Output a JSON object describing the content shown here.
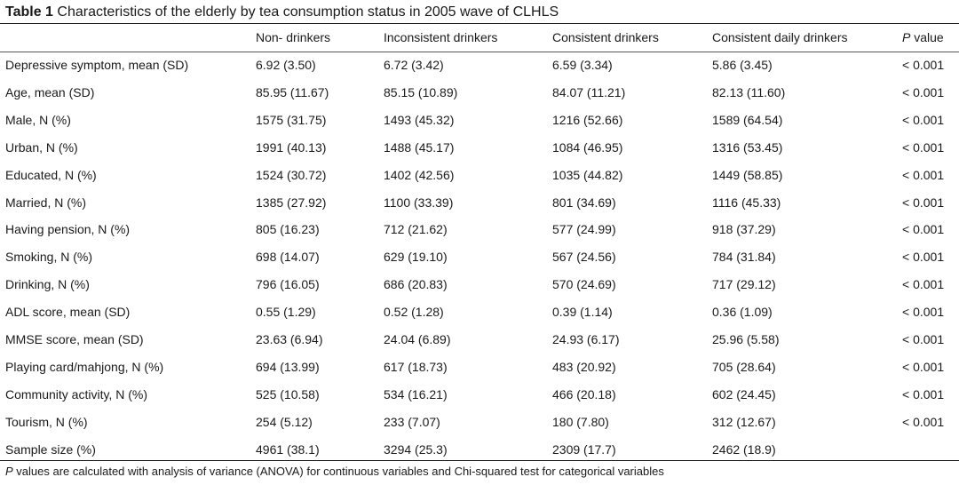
{
  "table": {
    "label": "Table 1",
    "caption": "Characteristics of the elderly by tea consumption status in 2005 wave of CLHLS",
    "columns": [
      "",
      "Non- drinkers",
      "Inconsistent drinkers",
      "Consistent drinkers",
      "Consistent daily drinkers",
      "P value"
    ],
    "p_col_italic": "P",
    "p_col_rest": " value",
    "rows": [
      {
        "label": "Depressive symptom, mean (SD)",
        "cells": [
          "6.92 (3.50)",
          "6.72 (3.42)",
          "6.59 (3.34)",
          "5.86 (3.45)",
          "< 0.001"
        ]
      },
      {
        "label": "Age, mean (SD)",
        "cells": [
          "85.95 (11.67)",
          "85.15 (10.89)",
          "84.07 (11.21)",
          "82.13 (11.60)",
          "< 0.001"
        ]
      },
      {
        "label": "Male, N (%)",
        "cells": [
          "1575 (31.75)",
          "1493 (45.32)",
          "1216 (52.66)",
          "1589 (64.54)",
          "< 0.001"
        ]
      },
      {
        "label": "Urban, N (%)",
        "cells": [
          "1991 (40.13)",
          "1488 (45.17)",
          "1084 (46.95)",
          "1316 (53.45)",
          "< 0.001"
        ]
      },
      {
        "label": "Educated, N (%)",
        "cells": [
          "1524 (30.72)",
          "1402 (42.56)",
          "1035 (44.82)",
          "1449 (58.85)",
          "< 0.001"
        ]
      },
      {
        "label": "Married, N (%)",
        "cells": [
          "1385 (27.92)",
          "1100 (33.39)",
          "801 (34.69)",
          "1116 (45.33)",
          "< 0.001"
        ]
      },
      {
        "label": "Having pension, N (%)",
        "cells": [
          "805 (16.23)",
          "712 (21.62)",
          "577 (24.99)",
          "918 (37.29)",
          "< 0.001"
        ]
      },
      {
        "label": "Smoking, N (%)",
        "cells": [
          "698 (14.07)",
          "629 (19.10)",
          "567 (24.56)",
          "784 (31.84)",
          "< 0.001"
        ]
      },
      {
        "label": "Drinking, N (%)",
        "cells": [
          "796 (16.05)",
          "686 (20.83)",
          "570 (24.69)",
          "717 (29.12)",
          "< 0.001"
        ]
      },
      {
        "label": "ADL score, mean (SD)",
        "cells": [
          "0.55 (1.29)",
          "0.52 (1.28)",
          "0.39 (1.14)",
          "0.36 (1.09)",
          "< 0.001"
        ]
      },
      {
        "label": "MMSE score, mean (SD)",
        "cells": [
          "23.63 (6.94)",
          "24.04 (6.89)",
          "24.93 (6.17)",
          "25.96 (5.58)",
          "< 0.001"
        ]
      },
      {
        "label": "Playing card/mahjong, N (%)",
        "cells": [
          "694 (13.99)",
          "617 (18.73)",
          "483 (20.92)",
          "705 (28.64)",
          "< 0.001"
        ]
      },
      {
        "label": "Community activity, N (%)",
        "cells": [
          "525 (10.58)",
          "534 (16.21)",
          "466 (20.18)",
          "602 (24.45)",
          "< 0.001"
        ]
      },
      {
        "label": "Tourism, N (%)",
        "cells": [
          "254 (5.12)",
          "233 (7.07)",
          "180 (7.80)",
          "312 (12.67)",
          "< 0.001"
        ]
      },
      {
        "label": "Sample size (%)",
        "cells": [
          "4961 (38.1)",
          "3294 (25.3)",
          "2309 (17.7)",
          "2462 (18.9)",
          ""
        ]
      }
    ],
    "footnote_italic": "P",
    "footnote_rest": " values are calculated with analysis of variance (ANOVA) for continuous variables and Chi-squared test for categorical variables"
  }
}
